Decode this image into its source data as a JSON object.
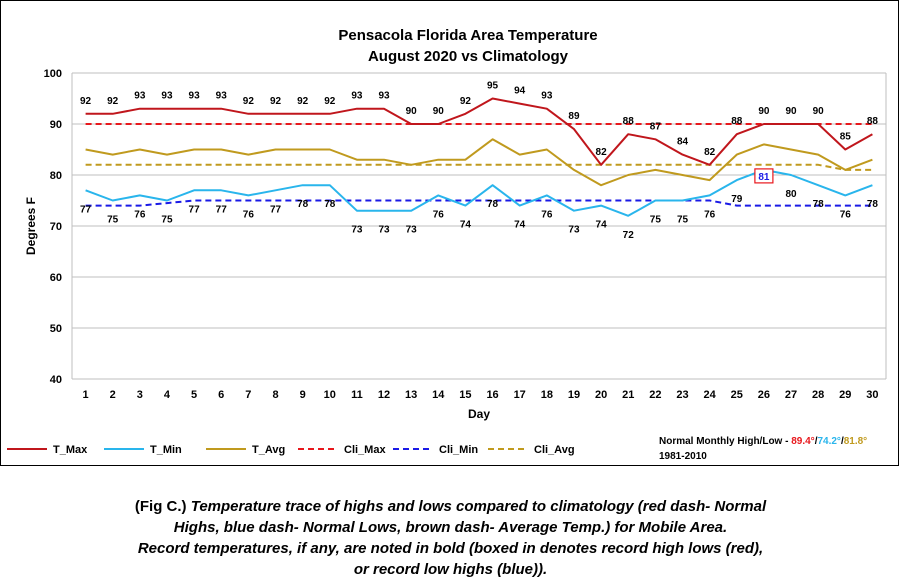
{
  "chart_data": {
    "type": "line",
    "title": "Pensacola Florida Area Temperature",
    "subtitle": "August 2020 vs Climatology",
    "xlabel": "Day",
    "ylabel": "Degrees F",
    "ylim": [
      40,
      100
    ],
    "yticks": [
      40,
      50,
      60,
      70,
      80,
      90,
      100
    ],
    "grid": true,
    "legend_position": "bottom",
    "x": [
      1,
      2,
      3,
      4,
      5,
      6,
      7,
      8,
      9,
      10,
      11,
      12,
      13,
      14,
      15,
      16,
      17,
      18,
      19,
      20,
      21,
      22,
      23,
      24,
      25,
      26,
      27,
      28,
      29,
      30
    ],
    "series": [
      {
        "name": "T_Max",
        "style": "solid",
        "color": "#c0161c",
        "values": [
          92,
          92,
          93,
          93,
          93,
          93,
          92,
          92,
          92,
          92,
          93,
          93,
          90,
          90,
          92,
          95,
          94,
          93,
          89,
          82,
          88,
          87,
          84,
          82,
          88,
          90,
          90,
          90,
          85,
          88
        ]
      },
      {
        "name": "T_Min",
        "style": "solid",
        "color": "#29b5ec",
        "values": [
          77,
          75,
          76,
          75,
          77,
          77,
          76,
          77,
          78,
          78,
          73,
          73,
          73,
          76,
          74,
          78,
          74,
          76,
          73,
          74,
          72,
          75,
          75,
          76,
          79,
          81,
          80,
          78,
          76,
          78
        ]
      },
      {
        "name": "T_Avg",
        "style": "solid",
        "color": "#c09a1e",
        "values": [
          85,
          84,
          85,
          84,
          85,
          85,
          84,
          85,
          85,
          85,
          83,
          83,
          82,
          83,
          83,
          87,
          84,
          85,
          81,
          78,
          80,
          81,
          80,
          79,
          84,
          86,
          85,
          84,
          81,
          83
        ]
      },
      {
        "name": "Cli_Max",
        "style": "dashed",
        "color": "#e8171c",
        "values": [
          90,
          90,
          90,
          90,
          90,
          90,
          90,
          90,
          90,
          90,
          90,
          90,
          90,
          90,
          90,
          90,
          90,
          90,
          90,
          90,
          90,
          90,
          90,
          90,
          90,
          90,
          90,
          90,
          90,
          90
        ]
      },
      {
        "name": "Cli_Min",
        "style": "dashed",
        "color": "#1a1ae6",
        "values": [
          74,
          74,
          74,
          74.5,
          75,
          75,
          75,
          75,
          75,
          75,
          75,
          75,
          75,
          75,
          75,
          75,
          75,
          75,
          75,
          75,
          75,
          75,
          75,
          75,
          74,
          74,
          74,
          74,
          74,
          74
        ]
      },
      {
        "name": "Cli_Avg",
        "style": "dashed",
        "color": "#c09a1e",
        "values": [
          82,
          82,
          82,
          82,
          82,
          82,
          82,
          82,
          82,
          82,
          82,
          82,
          82,
          82,
          82,
          82,
          82,
          82,
          82,
          82,
          82,
          82,
          82,
          82,
          82,
          82,
          82,
          82,
          81,
          81
        ]
      }
    ],
    "max_labels": [
      "92",
      "92",
      "93",
      "93",
      "93",
      "93",
      "92",
      "92",
      "92",
      "92",
      "93",
      "93",
      "90",
      "90",
      "92",
      "95",
      "94",
      "93",
      "89",
      "82",
      "88",
      "87",
      "84",
      "82",
      "88",
      "90",
      "90",
      "90",
      "85",
      "88"
    ],
    "min_labels": [
      "77",
      "75",
      "76",
      "75",
      "77",
      "77",
      "76",
      "77",
      "78",
      "78",
      "73",
      "73",
      "73",
      "76",
      "74",
      "78",
      "74",
      "76",
      "73",
      "74",
      "72",
      "75",
      "75",
      "76",
      "79",
      "81",
      "80",
      "78",
      "76",
      "78"
    ],
    "record_boxed_day": 26,
    "normals": {
      "label": "Normal Monthly High/Low - ",
      "high": "89.4°",
      "low": "74.2°",
      "avg": "81.8°",
      "sep": "/",
      "period": "1981-2010",
      "high_color": "#e8171c",
      "low_color": "#29b5ec",
      "avg_color": "#c09a1e"
    }
  },
  "caption": {
    "prefix": "(Fig C.) ",
    "line1": "Temperature trace of highs and lows compared to climatology (red dash- Normal",
    "line2": "Highs, blue dash- Normal Lows, brown dash- Average Temp.) for Mobile Area.",
    "line3": "Record temperatures, if any, are noted in bold (boxed in denotes record high lows (red),",
    "line4": "or record low highs (blue))."
  }
}
